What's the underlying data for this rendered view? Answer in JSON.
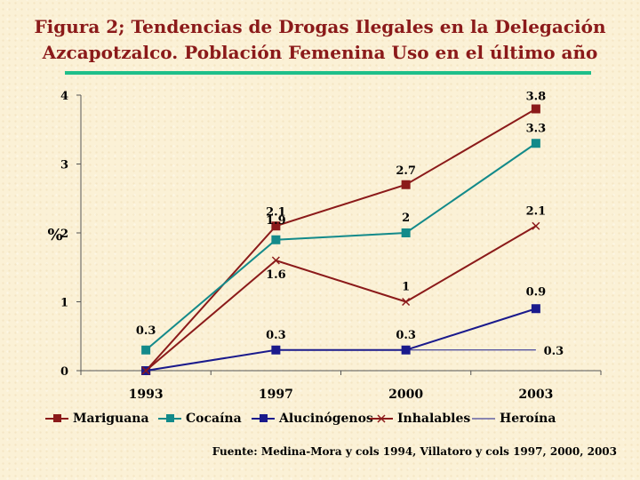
{
  "title_line1": "Figura 2; Tendencias de Drogas Ilegales en  la Delegación",
  "title_line2": "Azcapotzalco. Población Femenina Uso en el último año",
  "source": "Fuente: Medina-Mora y cols 1994, Villatoro y cols 1997, 2000, 2003",
  "colors": {
    "title": "#8b1a1a",
    "rule": "#1fbf8a",
    "background": "#fbf1d6"
  },
  "chart_data": {
    "type": "line",
    "title": "",
    "xlabel": "",
    "ylabel": "%",
    "categories": [
      "1993",
      "1997",
      "2000",
      "2003"
    ],
    "ylim": [
      0,
      4
    ],
    "yticks": [
      "0",
      "1",
      "2",
      "3",
      "4"
    ],
    "grid": false,
    "legend_position": "bottom",
    "series": [
      {
        "name": "Mariguana",
        "values": [
          0,
          2.1,
          2.7,
          3.8
        ],
        "labels": [
          "",
          "2.1",
          "2.7",
          "3.8"
        ],
        "color": "#8b1a1a",
        "marker": "square"
      },
      {
        "name": "Cocaína",
        "values": [
          0.3,
          1.9,
          2,
          3.3
        ],
        "labels": [
          "0.3",
          "1.9",
          "2",
          "3.3"
        ],
        "color": "#138a8a",
        "marker": "square"
      },
      {
        "name": "Alucinógenos",
        "values": [
          0,
          0.3,
          0.3,
          0.9
        ],
        "labels": [
          "",
          "0.3",
          "0.3",
          "0.9"
        ],
        "color": "#1a1a8c",
        "marker": "square"
      },
      {
        "name": "Inhalables",
        "values": [
          0,
          1.6,
          1,
          2.1
        ],
        "labels": [
          "",
          "1.6",
          "1",
          "2.1"
        ],
        "color": "#8b1a1a",
        "marker": "x"
      },
      {
        "name": "Heroína",
        "values": [
          null,
          null,
          0.3,
          0.3
        ],
        "labels": [
          "",
          "",
          "",
          "0.3"
        ],
        "color": "#1a1a8c",
        "marker": "none"
      }
    ]
  }
}
